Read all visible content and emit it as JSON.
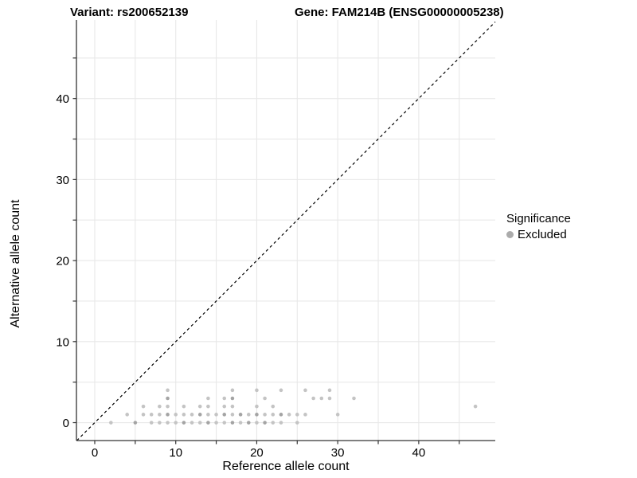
{
  "titles": {
    "variant": "Variant: rs200652139",
    "gene": "Gene: FAM214B (ENSG00000005238)"
  },
  "legend": {
    "title": "Significance",
    "items": [
      {
        "label": "Excluded",
        "color": "#ababab"
      }
    ]
  },
  "colors": {
    "background": "#ffffff",
    "grid": "#e8e8e8",
    "axis": "#333333",
    "identity_line": "#000000",
    "point_light": "#c4c4c4",
    "point_dark": "#a4a4a4"
  },
  "chart_data": {
    "type": "scatter",
    "xlabel": "Reference allele count",
    "ylabel": "Alternative allele count",
    "xlim": [
      -2.26,
      49.45
    ],
    "ylim": [
      -2.21,
      49.7
    ],
    "tick_marks": [
      0,
      5,
      10,
      15,
      20,
      25,
      30,
      35,
      40,
      45
    ],
    "labeled_ticks": [
      0,
      10,
      20,
      30,
      40
    ],
    "grid": "on",
    "legend_position": "right",
    "identity_line": {
      "type": "y=x",
      "style": "dashed"
    },
    "point_radius": 2.3,
    "series": [
      {
        "name": "Excluded",
        "points": [
          [
            2,
            0,
            0
          ],
          [
            5,
            0,
            1
          ],
          [
            7,
            0,
            0
          ],
          [
            8,
            0,
            0
          ],
          [
            9,
            0,
            0
          ],
          [
            10,
            0,
            0
          ],
          [
            11,
            0,
            1
          ],
          [
            12,
            0,
            0
          ],
          [
            13,
            0,
            0
          ],
          [
            14,
            0,
            1
          ],
          [
            15,
            0,
            0
          ],
          [
            16,
            0,
            0
          ],
          [
            17,
            0,
            1
          ],
          [
            18,
            0,
            0
          ],
          [
            19,
            0,
            1
          ],
          [
            20,
            0,
            0
          ],
          [
            21,
            0,
            1
          ],
          [
            22,
            0,
            0
          ],
          [
            23,
            0,
            0
          ],
          [
            25,
            0,
            0
          ],
          [
            4,
            1,
            0
          ],
          [
            6,
            1,
            0
          ],
          [
            7,
            1,
            0
          ],
          [
            8,
            1,
            0
          ],
          [
            9,
            1,
            1
          ],
          [
            10,
            1,
            0
          ],
          [
            11,
            1,
            0
          ],
          [
            12,
            1,
            0
          ],
          [
            13,
            1,
            1
          ],
          [
            14,
            1,
            0
          ],
          [
            15,
            1,
            0
          ],
          [
            16,
            1,
            1
          ],
          [
            17,
            1,
            0
          ],
          [
            18,
            1,
            1
          ],
          [
            19,
            1,
            0
          ],
          [
            20,
            1,
            1
          ],
          [
            21,
            1,
            0
          ],
          [
            22,
            1,
            0
          ],
          [
            23,
            1,
            1
          ],
          [
            24,
            1,
            0
          ],
          [
            25,
            1,
            0
          ],
          [
            26,
            1,
            0
          ],
          [
            30,
            1,
            0
          ],
          [
            6,
            2,
            0
          ],
          [
            8,
            2,
            0
          ],
          [
            9,
            2,
            0
          ],
          [
            11,
            2,
            0
          ],
          [
            13,
            2,
            0
          ],
          [
            14,
            2,
            0
          ],
          [
            16,
            2,
            0
          ],
          [
            17,
            2,
            0
          ],
          [
            20,
            2,
            0
          ],
          [
            22,
            2,
            0
          ],
          [
            47,
            2,
            0
          ],
          [
            9,
            3,
            1
          ],
          [
            14,
            3,
            0
          ],
          [
            16,
            3,
            0
          ],
          [
            17,
            3,
            1
          ],
          [
            21,
            3,
            0
          ],
          [
            27,
            3,
            0
          ],
          [
            28,
            3,
            0
          ],
          [
            29,
            3,
            0
          ],
          [
            32,
            3,
            0
          ],
          [
            9,
            4,
            0
          ],
          [
            17,
            4,
            0
          ],
          [
            20,
            4,
            0
          ],
          [
            23,
            4,
            0
          ],
          [
            26,
            4,
            0
          ],
          [
            29,
            4,
            0
          ]
        ]
      }
    ]
  }
}
